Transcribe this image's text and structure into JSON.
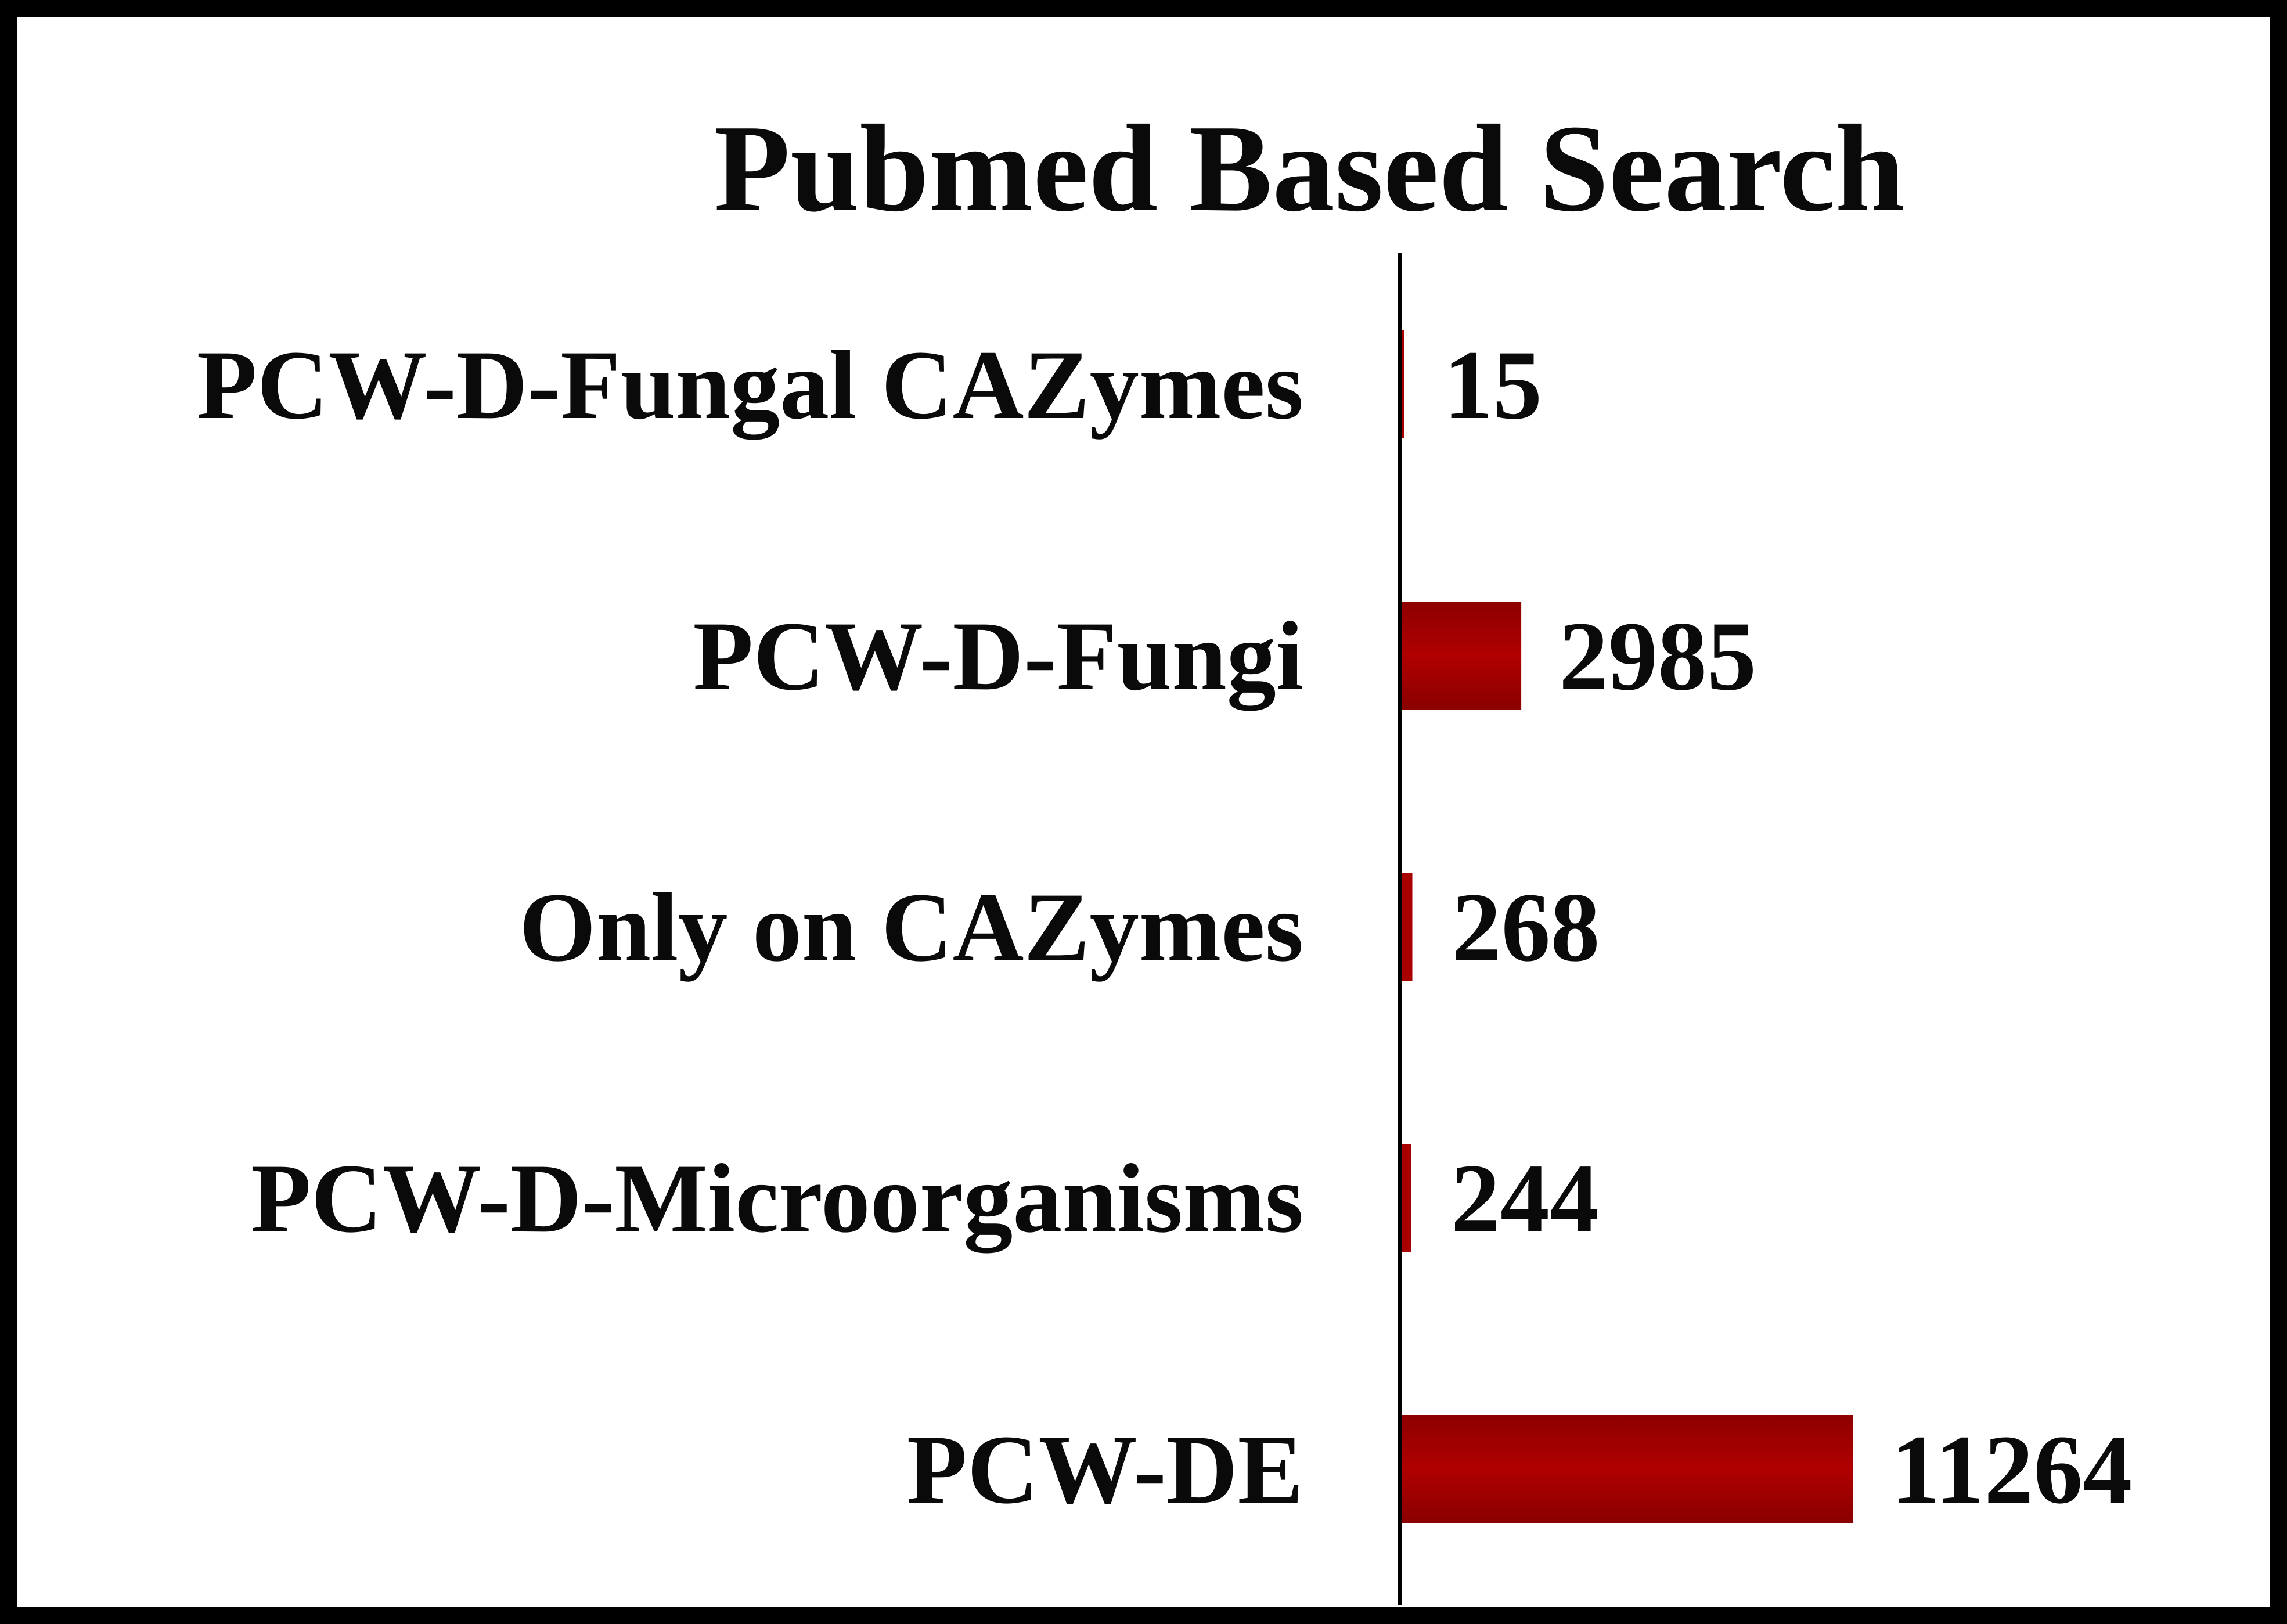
{
  "chart_data": {
    "type": "bar",
    "orientation": "horizontal",
    "title": "Pubmed Based Search",
    "xlabel": "",
    "ylabel": "",
    "categories": [
      "PCW-D-Fungal CAZymes",
      "PCW-D-Fungi",
      "Only on CAZymes",
      "PCW-D-Microorganisms",
      "PCW-DE"
    ],
    "values": [
      15,
      2985,
      268,
      244,
      11264
    ],
    "value_labels": [
      "15",
      "2985",
      "268",
      "244",
      "11264"
    ],
    "xlim": [
      0,
      16800
    ],
    "grid": false,
    "legend": "none",
    "bar_color": "#a80000",
    "axis_color": "#000000",
    "border_color": "#000000"
  }
}
